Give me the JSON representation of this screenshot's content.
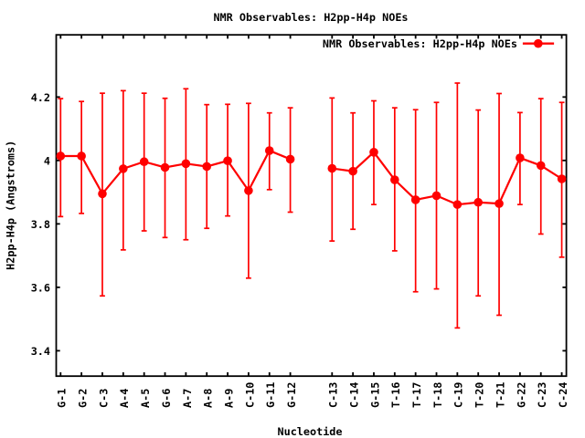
{
  "title": "NMR Observables: H2pp-H4p NOEs",
  "legend": {
    "label": "NMR Observables: H2pp-H4p NOEs",
    "position": "top-right-inside",
    "marker": "filled-circle-on-line"
  },
  "chart_data": {
    "type": "line",
    "subtype": "linespoints-with-yerrorbars",
    "title": "NMR Observables: H2pp-H4p NOEs",
    "xlabel": "Nucleotide",
    "ylabel": "H2pp-H4p (Angstroms)",
    "series_name": "NMR Observables: H2pp-H4p NOEs",
    "series_color": "#ff0000",
    "axis_color": "#000000",
    "background_color": "#ffffff",
    "grid": false,
    "legend_position": "top-right-inside",
    "yticks": [
      3.4,
      3.6,
      3.8,
      4.0,
      4.2
    ],
    "ytick_labels": [
      "3.4",
      "3.6",
      "3.8",
      "4",
      "4.2"
    ],
    "ylim": [
      3.32,
      4.396
    ],
    "xlim": [
      0.79,
      25.22
    ],
    "categories": [
      "G-1",
      "G-2",
      "C-3",
      "A-4",
      "A-5",
      "G-6",
      "A-7",
      "A-8",
      "A-9",
      "C-10",
      "G-11",
      "G-12",
      "C-13",
      "C-14",
      "G-15",
      "T-16",
      "T-17",
      "T-18",
      "C-19",
      "T-20",
      "T-21",
      "G-22",
      "C-23",
      "C-24"
    ],
    "x_positions": [
      1,
      2,
      3,
      4,
      5,
      6,
      7,
      8,
      9,
      10,
      11,
      12,
      14,
      15,
      16,
      17,
      18,
      19,
      20,
      21,
      22,
      23,
      24,
      25
    ],
    "line_break_after_category": "G-12",
    "segments": [
      [
        0,
        11
      ],
      [
        12,
        23
      ]
    ],
    "values": [
      4.014,
      4.014,
      3.895,
      3.974,
      3.996,
      3.978,
      3.99,
      3.981,
      3.999,
      3.905,
      4.031,
      4.004,
      3.975,
      3.966,
      4.026,
      3.939,
      3.876,
      3.889,
      3.861,
      3.868,
      3.864,
      4.008,
      3.984,
      3.942
    ],
    "y_low": [
      3.823,
      3.833,
      3.573,
      3.718,
      3.778,
      3.757,
      3.75,
      3.786,
      3.825,
      3.629,
      3.908,
      3.837,
      3.746,
      3.783,
      3.861,
      3.715,
      3.586,
      3.595,
      3.472,
      3.573,
      3.512,
      3.861,
      3.768,
      3.695
    ],
    "y_high": [
      4.195,
      4.186,
      4.212,
      4.22,
      4.212,
      4.196,
      4.226,
      4.176,
      4.177,
      4.18,
      4.15,
      4.166,
      4.197,
      4.15,
      4.188,
      4.166,
      4.16,
      4.183,
      4.244,
      4.159,
      4.211,
      4.151,
      4.195,
      4.183
    ]
  }
}
